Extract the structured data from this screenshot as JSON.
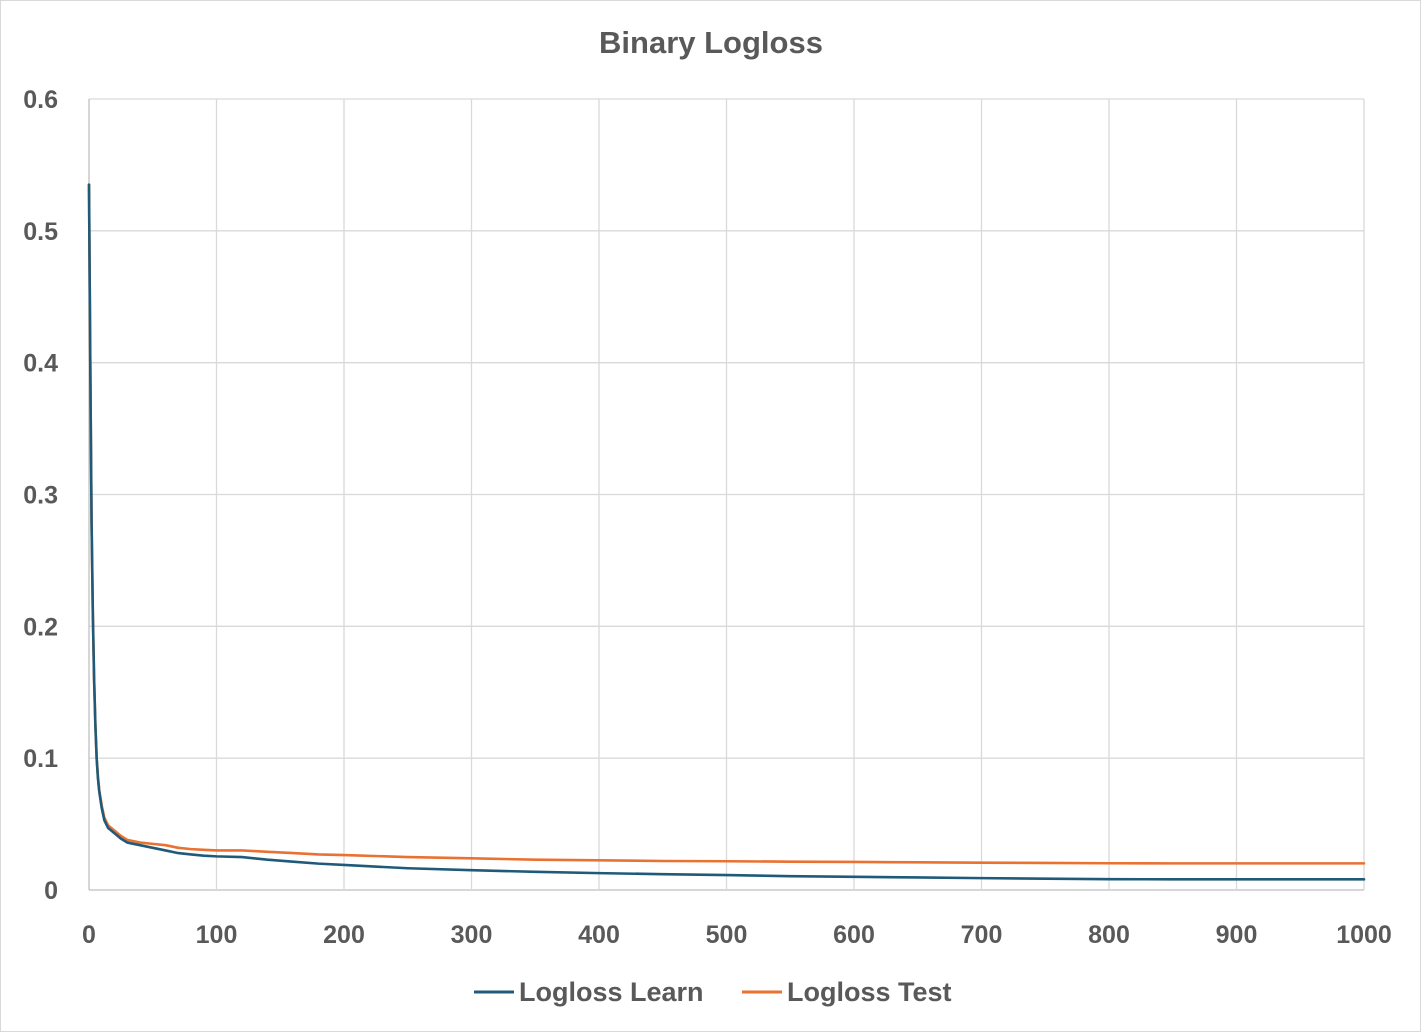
{
  "chart_data": {
    "type": "line",
    "title": "Binary Logloss",
    "xlabel": "",
    "ylabel": "",
    "xlim": [
      0,
      1000
    ],
    "ylim": [
      0,
      0.6
    ],
    "x_ticks": [
      "0",
      "100",
      "200",
      "300",
      "400",
      "500",
      "600",
      "700",
      "800",
      "900",
      "1000"
    ],
    "y_ticks": [
      "0",
      "0.1",
      "0.2",
      "0.3",
      "0.4",
      "0.5",
      "0.6"
    ],
    "grid": true,
    "legend_position": "bottom",
    "series": [
      {
        "name": "Logloss Learn",
        "color": "#1f5b78",
        "x": [
          0,
          1,
          2,
          3,
          4,
          5,
          6,
          7,
          8,
          10,
          12,
          15,
          20,
          25,
          30,
          40,
          50,
          60,
          70,
          80,
          90,
          100,
          120,
          140,
          160,
          180,
          200,
          250,
          300,
          350,
          400,
          450,
          500,
          550,
          600,
          650,
          700,
          750,
          800,
          850,
          900,
          950,
          1000
        ],
        "y": [
          0.535,
          0.4,
          0.28,
          0.21,
          0.16,
          0.125,
          0.1,
          0.085,
          0.075,
          0.062,
          0.053,
          0.047,
          0.043,
          0.039,
          0.036,
          0.034,
          0.032,
          0.03,
          0.028,
          0.027,
          0.026,
          0.0255,
          0.025,
          0.023,
          0.0215,
          0.02,
          0.019,
          0.0165,
          0.015,
          0.0138,
          0.0128,
          0.012,
          0.0113,
          0.0105,
          0.01,
          0.0095,
          0.009,
          0.0086,
          0.0082,
          0.0081,
          0.0081,
          0.0081,
          0.0081
        ]
      },
      {
        "name": "Logloss Test",
        "color": "#e97132",
        "x": [
          0,
          1,
          2,
          3,
          4,
          5,
          6,
          7,
          8,
          10,
          12,
          15,
          20,
          25,
          30,
          40,
          50,
          60,
          70,
          80,
          90,
          100,
          120,
          140,
          160,
          180,
          200,
          250,
          300,
          350,
          400,
          450,
          500,
          550,
          600,
          650,
          700,
          750,
          800,
          850,
          900,
          950,
          1000
        ],
        "y": [
          0.535,
          0.4,
          0.28,
          0.21,
          0.16,
          0.125,
          0.1,
          0.086,
          0.076,
          0.064,
          0.055,
          0.049,
          0.045,
          0.041,
          0.038,
          0.036,
          0.035,
          0.034,
          0.032,
          0.031,
          0.0305,
          0.03,
          0.03,
          0.029,
          0.028,
          0.027,
          0.0265,
          0.025,
          0.024,
          0.023,
          0.0225,
          0.022,
          0.0218,
          0.0215,
          0.0213,
          0.021,
          0.0207,
          0.0205,
          0.0203,
          0.0202,
          0.0202,
          0.0202,
          0.0202
        ]
      }
    ]
  }
}
